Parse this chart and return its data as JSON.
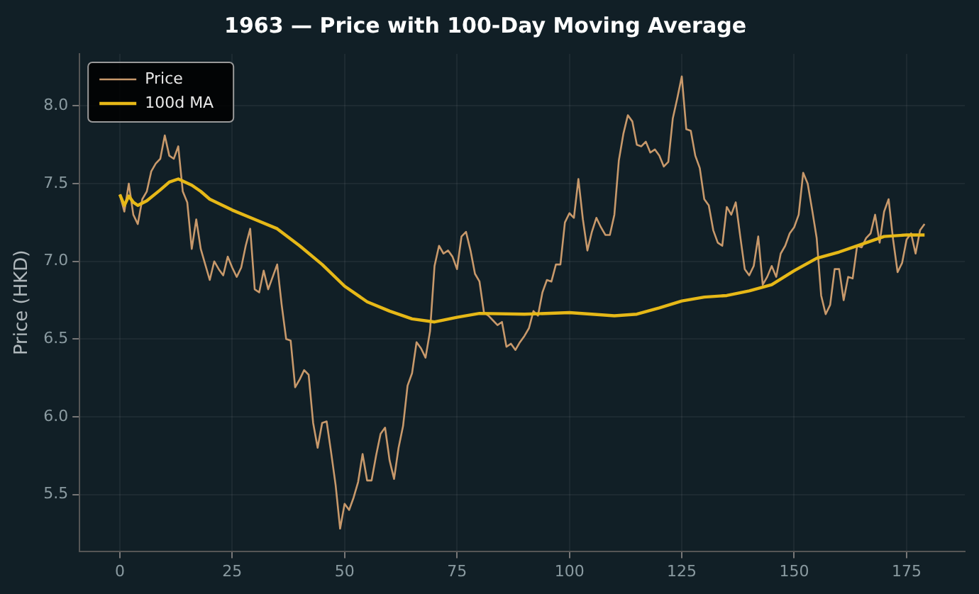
{
  "chart_data": {
    "type": "line",
    "title": "1963 — Price with 100-Day Moving Average",
    "ylabel": "Price (HKD)",
    "xlim": [
      -8.95,
      187.95
    ],
    "xticks": [
      0,
      25,
      50,
      75,
      100,
      125,
      150,
      175
    ],
    "ylim": [
      5.135,
      8.335
    ],
    "yticks": [
      {
        "value": 5.5,
        "label": "5.5"
      },
      {
        "value": 6,
        "label": "6.0"
      },
      {
        "value": 6.5,
        "label": "6.5"
      },
      {
        "value": 7,
        "label": "7.0"
      },
      {
        "value": 7.5,
        "label": "7.5"
      },
      {
        "value": 8,
        "label": "8.0"
      }
    ],
    "grid": true,
    "legend": "top left",
    "marker": "none",
    "line_style": "solid",
    "series": [
      {
        "name": "Price",
        "color": "#c8996b",
        "x": [
          0,
          1,
          2,
          3,
          4,
          5,
          6,
          7,
          8,
          9,
          10,
          11,
          12,
          13,
          14,
          15,
          16,
          17,
          18,
          19,
          20,
          21,
          22,
          23,
          24,
          25,
          26,
          27,
          28,
          29,
          30,
          31,
          32,
          33,
          34,
          35,
          36,
          37,
          38,
          39,
          40,
          41,
          42,
          43,
          44,
          45,
          46,
          47,
          48,
          49,
          50,
          51,
          52,
          53,
          54,
          55,
          56,
          57,
          58,
          59,
          60,
          61,
          62,
          63,
          64,
          65,
          66,
          67,
          68,
          69,
          70,
          71,
          72,
          73,
          74,
          75,
          76,
          77,
          78,
          79,
          80,
          81,
          82,
          83,
          84,
          85,
          86,
          87,
          88,
          89,
          90,
          91,
          92,
          93,
          94,
          95,
          96,
          97,
          98,
          99,
          100,
          101,
          102,
          103,
          104,
          105,
          106,
          107,
          108,
          109,
          110,
          111,
          112,
          113,
          114,
          115,
          116,
          117,
          118,
          119,
          120,
          121,
          122,
          123,
          124,
          125,
          126,
          127,
          128,
          129,
          130,
          131,
          132,
          133,
          134,
          135,
          136,
          137,
          138,
          139,
          140,
          141,
          142,
          143,
          144,
          145,
          146,
          147,
          148,
          149,
          150,
          151,
          152,
          153,
          154,
          155,
          156,
          157,
          158,
          159,
          160,
          161,
          162,
          163,
          164,
          165,
          166,
          167,
          168,
          169,
          170,
          171,
          172,
          173,
          174,
          175,
          176,
          177,
          178,
          179
        ],
        "values": [
          7.43,
          7.32,
          7.5,
          7.3,
          7.24,
          7.4,
          7.45,
          7.58,
          7.63,
          7.66,
          7.81,
          7.68,
          7.66,
          7.74,
          7.45,
          7.38,
          7.08,
          7.27,
          7.08,
          6.98,
          6.88,
          7.0,
          6.95,
          6.91,
          7.03,
          6.96,
          6.9,
          6.96,
          7.1,
          7.21,
          6.82,
          6.8,
          6.94,
          6.82,
          6.9,
          6.98,
          6.72,
          6.5,
          6.49,
          6.19,
          6.24,
          6.3,
          6.27,
          5.96,
          5.8,
          5.96,
          5.97,
          5.77,
          5.56,
          5.28,
          5.44,
          5.4,
          5.48,
          5.58,
          5.76,
          5.59,
          5.59,
          5.75,
          5.89,
          5.93,
          5.72,
          5.6,
          5.8,
          5.94,
          6.2,
          6.28,
          6.48,
          6.44,
          6.38,
          6.55,
          6.97,
          7.1,
          7.05,
          7.07,
          7.03,
          6.95,
          7.16,
          7.19,
          7.07,
          6.92,
          6.87,
          6.67,
          6.65,
          6.62,
          6.59,
          6.61,
          6.45,
          6.47,
          6.43,
          6.48,
          6.52,
          6.57,
          6.68,
          6.65,
          6.8,
          6.88,
          6.87,
          6.98,
          6.98,
          7.25,
          7.31,
          7.28,
          7.53,
          7.27,
          7.07,
          7.19,
          7.28,
          7.22,
          7.17,
          7.17,
          7.3,
          7.65,
          7.82,
          7.94,
          7.9,
          7.75,
          7.74,
          7.77,
          7.7,
          7.72,
          7.68,
          7.61,
          7.64,
          7.92,
          8.05,
          8.19,
          7.85,
          7.84,
          7.68,
          7.6,
          7.4,
          7.36,
          7.2,
          7.12,
          7.1,
          7.35,
          7.3,
          7.38,
          7.16,
          6.95,
          6.91,
          6.97,
          7.16,
          6.85,
          6.9,
          6.97,
          6.9,
          7.05,
          7.1,
          7.18,
          7.22,
          7.3,
          7.57,
          7.5,
          7.33,
          7.15,
          6.78,
          6.66,
          6.72,
          6.95,
          6.95,
          6.75,
          6.9,
          6.89,
          7.1,
          7.09,
          7.15,
          7.18,
          7.3,
          7.12,
          7.32,
          7.4,
          7.14,
          6.93,
          6.99,
          7.14,
          7.18,
          7.05,
          7.2,
          7.24
        ]
      },
      {
        "name": "100d MA",
        "color": "#e6b817",
        "x": [
          0,
          1,
          2,
          3,
          4,
          6,
          9,
          11,
          13,
          16,
          18,
          20,
          25,
          30,
          35,
          40,
          45,
          50,
          55,
          60,
          65,
          70,
          75,
          80,
          90,
          100,
          110,
          115,
          120,
          125,
          130,
          135,
          140,
          145,
          150,
          155,
          160,
          165,
          170,
          175,
          179
        ],
        "values": [
          7.43,
          7.36,
          7.42,
          7.38,
          7.36,
          7.39,
          7.46,
          7.51,
          7.53,
          7.49,
          7.45,
          7.4,
          7.33,
          7.27,
          7.21,
          7.1,
          6.98,
          6.84,
          6.74,
          6.68,
          6.63,
          6.61,
          6.64,
          6.665,
          6.66,
          6.67,
          6.65,
          6.66,
          6.7,
          6.745,
          6.77,
          6.78,
          6.81,
          6.85,
          6.94,
          7.02,
          7.06,
          7.11,
          7.16,
          7.17,
          7.17
        ]
      }
    ]
  }
}
